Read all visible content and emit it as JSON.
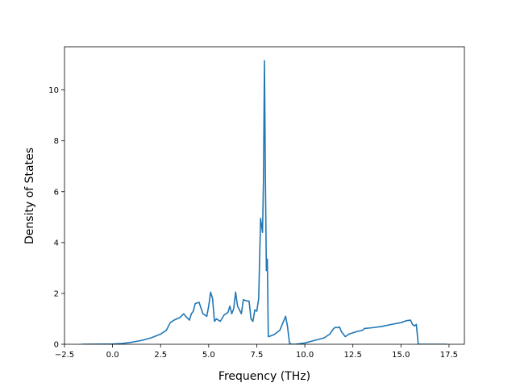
{
  "chart_data": {
    "type": "line",
    "title": "",
    "xlabel": "Frequency (THz)",
    "ylabel": "Density of States",
    "xlim": [
      -2.5,
      18.3
    ],
    "ylim": [
      0,
      11.7
    ],
    "xticks": [
      -2.5,
      0.0,
      2.5,
      5.0,
      7.5,
      10.0,
      12.5,
      15.0,
      17.5
    ],
    "xtick_labels": [
      "−2.5",
      "0.0",
      "2.5",
      "5.0",
      "7.5",
      "10.0",
      "12.5",
      "15.0",
      "17.5"
    ],
    "yticks": [
      0,
      2,
      4,
      6,
      8,
      10
    ],
    "ytick_labels": [
      "0",
      "2",
      "4",
      "6",
      "8",
      "10"
    ],
    "grid": false,
    "series": [
      {
        "name": "",
        "color": "#1f77b4",
        "x": [
          -1.6,
          0.0,
          0.5,
          1.0,
          1.5,
          2.0,
          2.5,
          2.8,
          3.0,
          3.2,
          3.5,
          3.7,
          3.8,
          4.0,
          4.1,
          4.2,
          4.3,
          4.5,
          4.7,
          4.9,
          5.0,
          5.1,
          5.2,
          5.3,
          5.4,
          5.6,
          5.8,
          6.0,
          6.1,
          6.2,
          6.3,
          6.4,
          6.5,
          6.7,
          6.8,
          7.0,
          7.1,
          7.2,
          7.3,
          7.4,
          7.5,
          7.6,
          7.7,
          7.8,
          7.85,
          7.9,
          7.95,
          8.0,
          8.05,
          8.1,
          8.2,
          8.4,
          8.7,
          9.0,
          9.1,
          9.2,
          9.3,
          9.5,
          10.0,
          10.5,
          11.0,
          11.3,
          11.5,
          11.6,
          11.7,
          11.8,
          11.9,
          12.1,
          12.3,
          12.7,
          13.0,
          13.1,
          13.5,
          14.0,
          14.5,
          15.0,
          15.3,
          15.5,
          15.6,
          15.7,
          15.8,
          15.9,
          17.4
        ],
        "y": [
          0,
          0.01,
          0.03,
          0.08,
          0.15,
          0.25,
          0.4,
          0.55,
          0.85,
          0.95,
          1.05,
          1.2,
          1.1,
          0.95,
          1.2,
          1.3,
          1.6,
          1.65,
          1.2,
          1.1,
          1.5,
          2.05,
          1.8,
          0.9,
          1.0,
          0.9,
          1.15,
          1.25,
          1.5,
          1.2,
          1.4,
          2.05,
          1.5,
          1.2,
          1.75,
          1.7,
          1.7,
          1.0,
          0.9,
          1.35,
          1.3,
          1.8,
          4.95,
          4.4,
          6.5,
          11.15,
          6.5,
          2.9,
          3.35,
          0.3,
          0.32,
          0.38,
          0.55,
          1.1,
          0.7,
          0.05,
          0,
          0,
          0.05,
          0.15,
          0.25,
          0.4,
          0.62,
          0.67,
          0.65,
          0.68,
          0.5,
          0.3,
          0.4,
          0.5,
          0.55,
          0.62,
          0.65,
          0.7,
          0.78,
          0.85,
          0.93,
          0.95,
          0.78,
          0.72,
          0.78,
          0.0,
          0.0
        ]
      }
    ]
  }
}
